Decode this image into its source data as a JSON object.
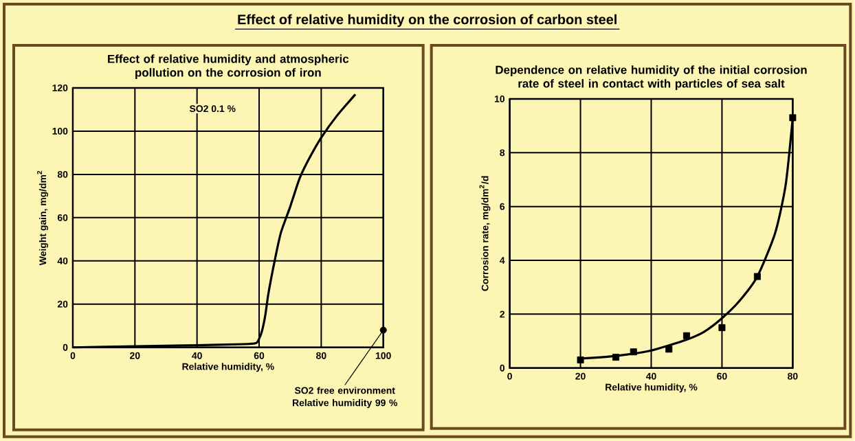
{
  "chart_data": [
    {
      "type": "other",
      "title": "Effect of relative humidity on the corrosion of carbon steel"
    },
    {
      "type": "line",
      "title": "Effect of relative humidity and atmospheric pollution on the corrosion of iron",
      "xlabel": "Relative humidity, %",
      "ylabel": "Weight gain, mg/dm$^{2}$",
      "xlim": [
        0,
        100
      ],
      "ylim": [
        0,
        120
      ],
      "xticks": [
        0,
        20,
        40,
        60,
        80,
        100
      ],
      "yticks": [
        0,
        20,
        40,
        60,
        80,
        100,
        120
      ],
      "grid": true,
      "series": [
        {
          "type": "line",
          "color": "#000000",
          "marker": "none",
          "x": [
            0,
            20,
            40,
            55,
            59,
            60,
            61,
            62,
            63,
            65,
            67,
            70,
            73,
            76,
            80,
            85,
            91
          ],
          "values": [
            0,
            0.5,
            1,
            1.5,
            2,
            4,
            8,
            15,
            25,
            40,
            53,
            65,
            78,
            87,
            97,
            107,
            117
          ]
        },
        {
          "type": "scatter",
          "color": "#000000",
          "marker": "circle",
          "x": [
            100
          ],
          "values": [
            8
          ]
        }
      ],
      "annotations": [
        "SO2 0.1 %",
        {
          "text": "SO2 free environment Relative humidity 99 %",
          "x": 100,
          "y": 8
        }
      ]
    },
    {
      "type": "scatter",
      "title": "Dependence on relative humidity of the initial corrosion rate of steel in contact with particles of sea salt",
      "xlabel": "Relative humidity, %",
      "ylabel": "Corrosion rate, mg/dm$^{2}$/d",
      "xlim": [
        0,
        80
      ],
      "ylim": [
        0,
        10
      ],
      "xticks": [
        0,
        20,
        40,
        60,
        80
      ],
      "yticks": [
        0,
        2,
        4,
        6,
        8,
        10
      ],
      "grid": true,
      "series": [
        {
          "type": "scatter",
          "color": "#000000",
          "marker": "square",
          "x": [
            20,
            30,
            35,
            45,
            50,
            60,
            70,
            80
          ],
          "values": [
            0.3,
            0.4,
            0.6,
            0.7,
            1.2,
            1.5,
            3.4,
            9.3
          ]
        },
        {
          "type": "line",
          "color": "#000000",
          "marker": "none",
          "x": [
            20,
            30,
            40,
            50,
            55,
            60,
            65,
            70,
            75,
            78,
            80
          ],
          "values": [
            0.35,
            0.45,
            0.65,
            1.05,
            1.35,
            1.85,
            2.5,
            3.4,
            5.0,
            6.8,
            9.3
          ]
        }
      ]
    }
  ]
}
